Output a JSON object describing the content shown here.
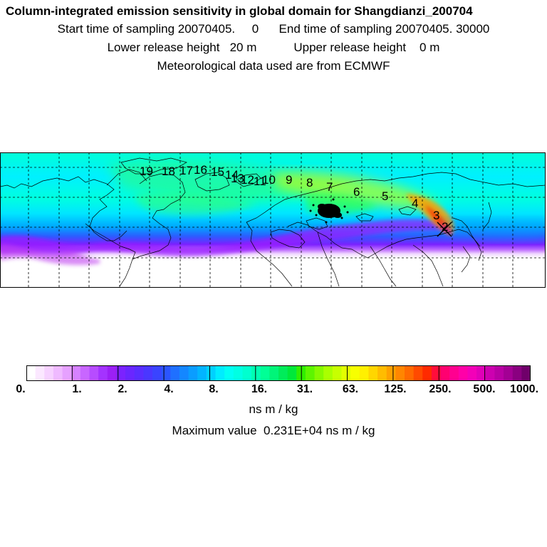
{
  "header": {
    "title": "Column-integrated emission sensitivity in global domain for Shangdianzi_200704",
    "sampling_line": "Start time of sampling 20070405.     0      End time of sampling 20070405. 30000",
    "release_line": "Lower release height   20 m           Upper release height    0 m",
    "met_line": "Meteorological data used are from ECMWF"
  },
  "map": {
    "trajectory_labels": [
      "19",
      "18",
      "17",
      "16",
      "15",
      "14",
      "13",
      "12",
      "11",
      "10",
      "9",
      "8",
      "7",
      "6",
      "5",
      "4",
      "3",
      "2"
    ],
    "station_marker": "Shangdianzi"
  },
  "colorbar": {
    "tick_labels": [
      "0.",
      "1.",
      "2.",
      "4.",
      "8.",
      "16.",
      "31.",
      "63.",
      "125.",
      "250.",
      "500.",
      "1000."
    ],
    "colors": [
      "#ffffff",
      "#fbe8ff",
      "#f6d2ff",
      "#efbaff",
      "#e6a1ff",
      "#d682ff",
      "#c866ff",
      "#b74cff",
      "#a433ff",
      "#9b20f5",
      "#7b22ff",
      "#6a26ff",
      "#5a2dff",
      "#4a37ff",
      "#3a44ff",
      "#2b55ff",
      "#1f70ff",
      "#1487ff",
      "#0a9dff",
      "#02b4ff",
      "#00d1ff",
      "#00ecff",
      "#00fff4",
      "#00ffe3",
      "#00ffcf",
      "#00ffb3",
      "#00ff96",
      "#00f579",
      "#00ec5a",
      "#00e83a",
      "#30ee00",
      "#5df500",
      "#86fa00",
      "#aaff00",
      "#c8ff00",
      "#e2ff00",
      "#f7ff00",
      "#fff000",
      "#ffd600",
      "#ffbc00",
      "#ffa100",
      "#ff8600",
      "#ff6a00",
      "#ff4a00",
      "#ff2a00",
      "#ff0d3a",
      "#ff0070",
      "#ff0090",
      "#ff00a8",
      "#f300b8",
      "#e000b8",
      "#cd00b0",
      "#b800a4",
      "#a30094",
      "#8a0080",
      "#70006a"
    ]
  },
  "units": "ns m / kg",
  "max_value": "Maximum value  0.231E+04 ns m / kg"
}
